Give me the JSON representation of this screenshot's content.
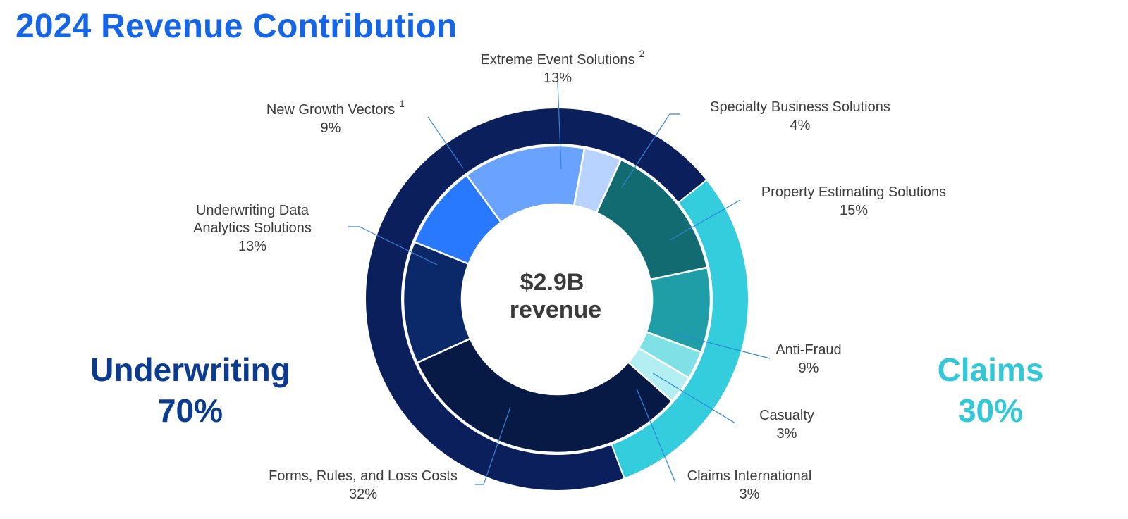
{
  "title": "2024 Revenue Contribution",
  "center": {
    "line1": "$2.9B",
    "line2": "revenue"
  },
  "groups": {
    "underwriting": {
      "label": "Underwriting",
      "pct": "70%",
      "color": "#0b3a91"
    },
    "claims": {
      "label": "Claims",
      "pct": "30%",
      "color": "#33c8d8"
    }
  },
  "chart_data": {
    "type": "donut",
    "title": "2024 Revenue Contribution",
    "total": "$2.9B",
    "outer_ring": [
      {
        "name": "Underwriting",
        "value": 70,
        "color": "#0a1f5c"
      },
      {
        "name": "Claims",
        "value": 30,
        "color": "#33cddd"
      }
    ],
    "inner_ring": [
      {
        "name": "Extreme Event Solutions",
        "sup": "2",
        "value": 13,
        "label": "13%",
        "group": "Underwriting",
        "color": "#6aa3ff"
      },
      {
        "name": "Specialty Business Solutions",
        "sup": "",
        "value": 4,
        "label": "4%",
        "group": "Underwriting",
        "color": "#b8d3ff"
      },
      {
        "name": "Property Estimating Solutions",
        "sup": "",
        "value": 15,
        "label": "15%",
        "group": "Claims",
        "color": "#136b72"
      },
      {
        "name": "Anti-Fraud",
        "sup": "",
        "value": 9,
        "label": "9%",
        "group": "Claims",
        "color": "#1f9ea8"
      },
      {
        "name": "Casualty",
        "sup": "",
        "value": 3,
        "label": "3%",
        "group": "Claims",
        "color": "#7fe0e6"
      },
      {
        "name": "Claims International",
        "sup": "",
        "value": 3,
        "label": "3%",
        "group": "Claims",
        "color": "#b3eef2"
      },
      {
        "name": "Forms, Rules, and Loss Costs",
        "sup": "",
        "value": 32,
        "label": "32%",
        "group": "Underwriting",
        "color": "#061a45"
      },
      {
        "name": "Underwriting Data Analytics Solutions",
        "sup": "",
        "value": 13,
        "label": "13%",
        "group": "Underwriting",
        "color": "#0b2868"
      },
      {
        "name": "New Growth Vectors",
        "sup": "1",
        "value": 9,
        "label": "9%",
        "group": "Underwriting",
        "color": "#2979ff"
      }
    ]
  }
}
